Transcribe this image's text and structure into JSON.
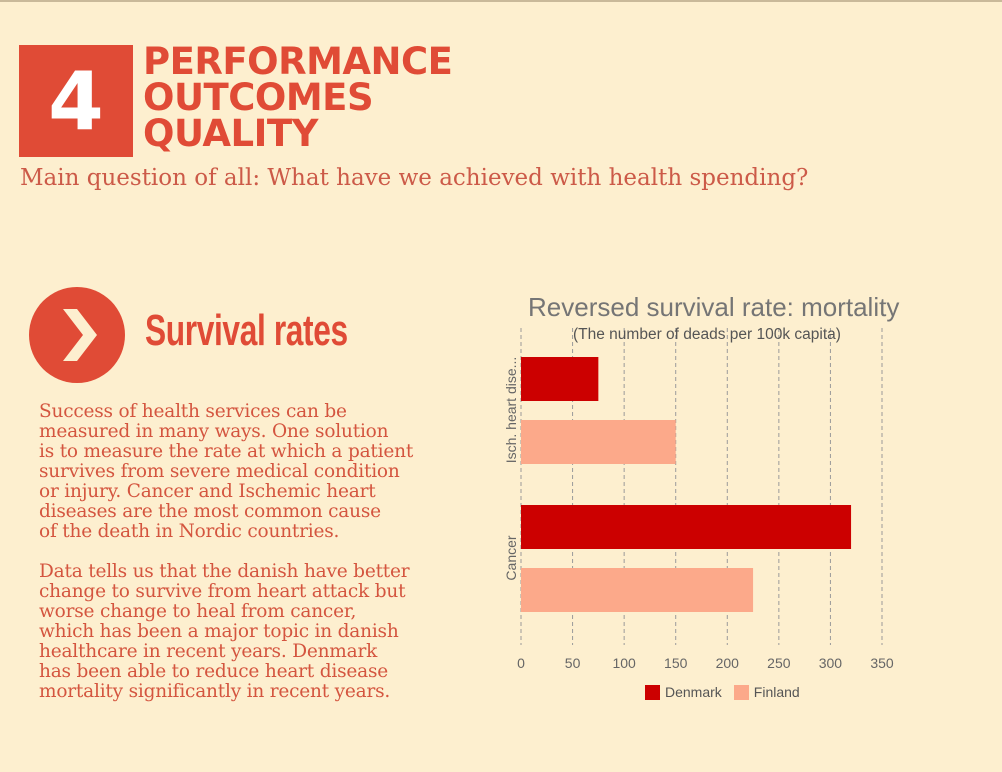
{
  "header": {
    "number": "4",
    "title_lines": [
      "PERFORMANCE",
      "OUTCOMES",
      "QUALITY"
    ],
    "subtitle": "Main question of all: What have we achieved with health spending?"
  },
  "section": {
    "title": "Survival rates",
    "paragraph1": [
      "Success of health services can be",
      "measured in many ways. One solution",
      "is to measure the rate at which a patient",
      "survives from severe medical condition",
      "or injury. Cancer and Ischemic heart",
      "diseases are the most common cause",
      "of the death in Nordic countries."
    ],
    "paragraph2": [
      "Data tells us that the danish have better",
      "change to survive from heart attack but",
      "worse change to heal from cancer,",
      "which has been a major topic in danish",
      "healthcare in recent years. Denmark",
      "has been able to reduce heart disease",
      "mortality significantly in recent years."
    ]
  },
  "chart_data": {
    "type": "bar",
    "orientation": "horizontal",
    "title": "Reversed survival rate: mortality",
    "subtitle": "(The number of deads per 100k capita)",
    "categories": [
      "Isch. heart dise...",
      "Cancer"
    ],
    "series": [
      {
        "name": "Denmark",
        "values": [
          75,
          320
        ],
        "color": "#cc0000"
      },
      {
        "name": "Finland",
        "values": [
          150,
          225
        ],
        "color": "#fca98a"
      }
    ],
    "xlim": [
      0,
      350
    ],
    "xticks": [
      0,
      50,
      100,
      150,
      200,
      250,
      300,
      350
    ],
    "grid": true,
    "legend": "bottom"
  }
}
